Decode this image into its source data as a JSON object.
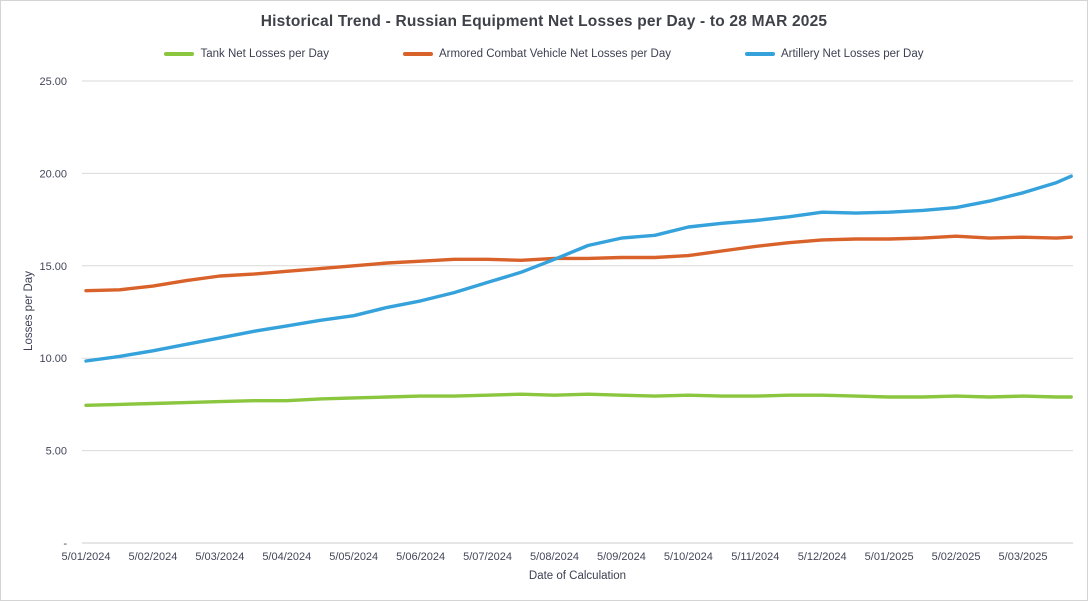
{
  "chart_data": {
    "type": "line",
    "title": "Historical Trend - Russian Equipment Net Losses per Day - to 28 MAR 2025",
    "xlabel": "Date of Calculation",
    "ylabel": "Losses per Day",
    "ylim": [
      0,
      25
    ],
    "grid": "horizontal",
    "legend_position": "top-center",
    "y_ticks": [
      {
        "value": 25,
        "label": "25.00"
      },
      {
        "value": 20,
        "label": "20.00"
      },
      {
        "value": 15,
        "label": "15.00"
      },
      {
        "value": 10,
        "label": "10.00"
      },
      {
        "value": 5,
        "label": "5.00"
      },
      {
        "value": 0,
        "label": "-"
      }
    ],
    "x_tick_labels": [
      "5/01/2024",
      "5/02/2024",
      "5/03/2024",
      "5/04/2024",
      "5/05/2024",
      "5/06/2024",
      "5/07/2024",
      "5/08/2024",
      "5/09/2024",
      "5/10/2024",
      "5/11/2024",
      "5/12/2024",
      "5/01/2025",
      "5/02/2025",
      "5/03/2025"
    ],
    "x_samples": [
      0,
      0.5,
      1,
      1.5,
      2,
      2.5,
      3,
      3.5,
      4,
      4.5,
      5,
      5.5,
      6,
      6.5,
      7,
      7.5,
      8,
      8.5,
      9,
      9.5,
      10,
      10.5,
      11,
      11.5,
      12,
      12.5,
      13,
      13.5,
      14,
      14.5,
      14.72
    ],
    "x_samples_unit": "month tick index (0 = 5/01/2024, 14 = 5/03/2025, 14.72 = 28 MAR 2025)",
    "series": [
      {
        "id": "tank",
        "name": "Tank Net Losses per Day",
        "color": "#8BC63F",
        "values": [
          7.45,
          7.5,
          7.55,
          7.6,
          7.65,
          7.7,
          7.7,
          7.8,
          7.85,
          7.9,
          7.95,
          7.95,
          8.0,
          8.05,
          8.0,
          8.05,
          8.0,
          7.95,
          8.0,
          7.95,
          7.95,
          8.0,
          8.0,
          7.95,
          7.9,
          7.9,
          7.95,
          7.9,
          7.95,
          7.9,
          7.9
        ]
      },
      {
        "id": "acv",
        "name": "Armored Combat Vehicle Net Losses per Day",
        "color": "#D9622B",
        "values": [
          13.65,
          13.7,
          13.9,
          14.2,
          14.45,
          14.55,
          14.7,
          14.85,
          15.0,
          15.15,
          15.25,
          15.35,
          15.35,
          15.3,
          15.4,
          15.4,
          15.45,
          15.45,
          15.55,
          15.8,
          16.05,
          16.25,
          16.4,
          16.45,
          16.45,
          16.5,
          16.6,
          16.5,
          16.55,
          16.5,
          16.55
        ]
      },
      {
        "id": "artillery",
        "name": "Artillery Net Losses per Day",
        "color": "#35A2DC",
        "values": [
          9.85,
          10.1,
          10.4,
          10.75,
          11.1,
          11.45,
          11.75,
          12.05,
          12.3,
          12.75,
          13.1,
          13.55,
          14.1,
          14.65,
          15.35,
          16.1,
          16.5,
          16.65,
          17.1,
          17.3,
          17.45,
          17.65,
          17.9,
          17.85,
          17.9,
          18.0,
          18.15,
          18.5,
          18.95,
          19.5,
          19.85
        ]
      }
    ],
    "gridline_color": "#d9d9d9",
    "text_color": "#3d4053"
  }
}
